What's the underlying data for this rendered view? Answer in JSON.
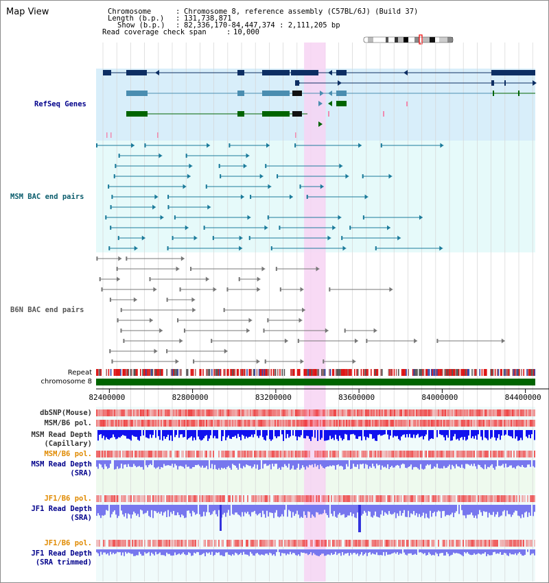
{
  "title": "Map View",
  "header": {
    "chromosome_key": "Chromosome",
    "chromosome_value": "Chromosome 8, reference assembly (C57BL/6J) (Build 37)",
    "length_key": "Length (b.p.)",
    "length_value": "131,738,871",
    "show_key": "Show (b.p.)",
    "show_value": "82,336,170-84,447,374 : 2,111,205 bp",
    "coverage_key": "Read coverage check span",
    "coverage_value": "10,000"
  },
  "tracks": {
    "refseq": "RefSeq Genes",
    "msm_bac": "MSM BAC end pairs",
    "b6n_bac": "B6N BAC end pairs",
    "repeat": "Repeat",
    "chromosome": "chromosome 8",
    "dbsnp": "dbSNP(Mouse)",
    "msm_b6_pol": "MSM/B6 pol.",
    "msm_depth_cap_1": "MSM Read Depth",
    "msm_depth_cap_2": "(Capillary)",
    "msm_b6_pol_2": "MSM/B6 pol.",
    "msm_depth_sra_1": "MSM Read Depth",
    "msm_depth_sra_2": "(SRA)",
    "jf1_b6_pol": "JF1/B6 pol.",
    "jf1_depth_sra_1": "JF1 Read Depth",
    "jf1_depth_sra_2": "(SRA)",
    "jf1_b6_pol_2": "JF1/B6 pol.",
    "jf1_depth_trim_1": "JF1 Read Depth",
    "jf1_depth_trim_2": "(SRA trimmed)"
  },
  "axis": {
    "start_bp": 82336170,
    "end_bp": 84447374,
    "ticks": [
      "82400000",
      "82800000",
      "83200000",
      "83600000",
      "84000000",
      "84400000"
    ]
  },
  "highlight_bp": [
    83336000,
    83440000
  ],
  "colors": {
    "refseq_bg": "#d8eefa",
    "bac_bg": "#e6fafa",
    "highlight": "#f7d3f3",
    "refseq_dark": "#0d2e63",
    "refseq_mid": "#4a8db0",
    "refseq_green": "#006400",
    "msm_bac": "#1a7a9a",
    "b6n_bac": "#777777",
    "chromosome": "#006400",
    "depth_cap": "#1111ee",
    "depth_sra": "#7777ee",
    "pol_red": "#ee2222"
  }
}
